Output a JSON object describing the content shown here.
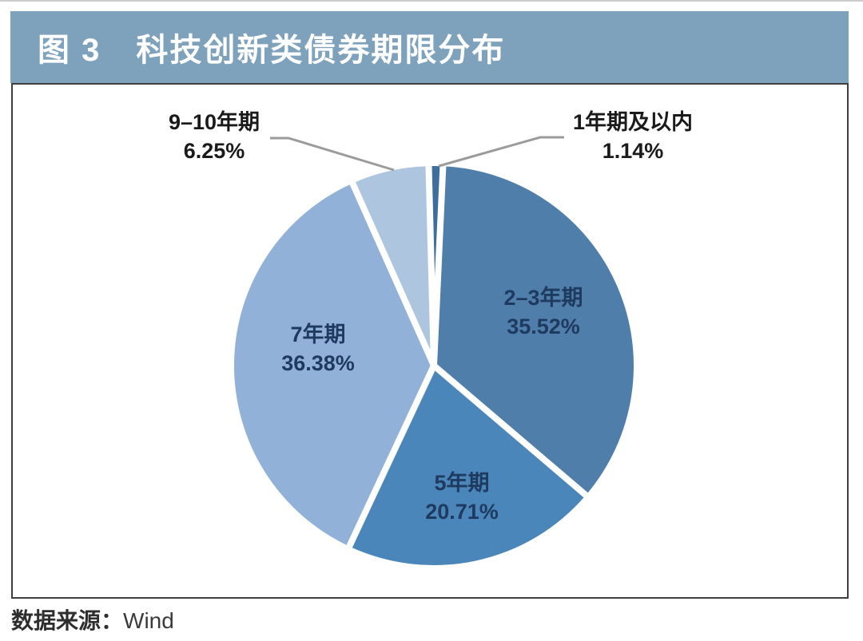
{
  "header": {
    "figure_no": "图 3",
    "title": "科技创新类债券期限分布",
    "bg_color": "#7ea2bc",
    "text_color": "#ffffff"
  },
  "source": {
    "prefix": "数据来源：",
    "name": "Wind"
  },
  "chart_data": {
    "type": "pie",
    "title": "科技创新类债券期限分布",
    "start_angle_deg": -1.5,
    "clockwise": true,
    "legend_position": "none",
    "labels_on_chart": true,
    "slices": [
      {
        "label": "1年期及以内",
        "value": 1.14,
        "pct_label": "1.14%",
        "color": "#3e6e9d",
        "label_placement": "outside-top-right"
      },
      {
        "label": "2–3年期",
        "value": 35.52,
        "pct_label": "35.52%",
        "color": "#4f7eab",
        "label_placement": "inside"
      },
      {
        "label": "5年期",
        "value": 20.71,
        "pct_label": "20.71%",
        "color": "#4a86ba",
        "label_placement": "inside"
      },
      {
        "label": "7年期",
        "value": 36.38,
        "pct_label": "36.38%",
        "color": "#92b1d8",
        "label_placement": "inside"
      },
      {
        "label": "9–10年期",
        "value": 6.25,
        "pct_label": "6.25%",
        "color": "#aec5e0",
        "label_placement": "outside-top-left"
      }
    ],
    "separator_color": "#ffffff",
    "inside_label_color": "#1e3a5f",
    "outside_label_color": "#1a1a1a",
    "leader_line_color": "#9b9b9b"
  }
}
